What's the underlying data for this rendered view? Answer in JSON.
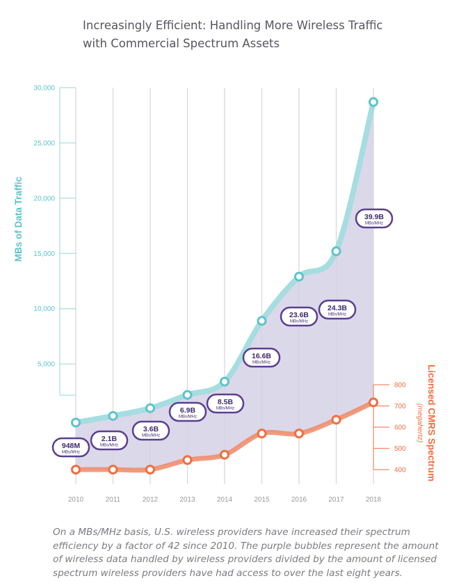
{
  "header": {
    "title_lines": [
      "Increasingly Efficient: Handling More Wireless Traffic",
      "with Commercial Spectrum Assets"
    ]
  },
  "caption": {
    "lines": [
      "On a MBs/MHz basis, U.S. wireless providers have increased their spectrum",
      "efficiency by a factor of 42 since 2010. The purple bubbles represent the amount",
      "of wireless data handled by wireless providers divided by the amount of licensed",
      "spectrum wireless providers have had access to over the last eight years."
    ]
  },
  "colors": {
    "traffic": "#a6dde0",
    "traffic_axis": "#5cc3cc",
    "spectrum": "#f08a66",
    "spectrum_axis": "#f26d3d",
    "fill": "#d5d1e6",
    "bubble": "#5b3f8f",
    "grid": "#d6d6d6",
    "year_label": "#9a9a9a"
  },
  "chart_data": {
    "type": "line",
    "x": [
      "2010",
      "2011",
      "2012",
      "2013",
      "2014",
      "2015",
      "2016",
      "2017",
      "2018"
    ],
    "series": [
      {
        "name": "MBs of Data Traffic",
        "axis": "left",
        "values": [
          -300,
          300,
          1000,
          2200,
          3400,
          8900,
          12900,
          15200,
          28700
        ]
      },
      {
        "name": "Licensed CMRS Spectrum",
        "axis": "right",
        "values": [
          400,
          400,
          400,
          445,
          470,
          570,
          570,
          635,
          717
        ]
      }
    ],
    "bubbles": [
      {
        "value": "948M",
        "unit": "MBs/MHz"
      },
      {
        "value": "2.1B",
        "unit": "MBs/MHz"
      },
      {
        "value": "3.6B",
        "unit": "MBs/MHz"
      },
      {
        "value": "6.9B",
        "unit": "MBs/MHz"
      },
      {
        "value": "8.5B",
        "unit": "MBs/MHz"
      },
      {
        "value": "16.6B",
        "unit": "MBs/MHz"
      },
      {
        "value": "23.6B",
        "unit": "MBs/MHz"
      },
      {
        "value": "24.3B",
        "unit": "MBs/MHz"
      },
      {
        "value": "39.9B",
        "unit": "MBs/MHz"
      }
    ],
    "left_axis": {
      "label": "MBs of Data Traffic",
      "ticks": [
        5000,
        10000,
        15000,
        20000,
        25000,
        30000
      ],
      "tick_labels": [
        "5,000",
        "10,000",
        "15,000",
        "20,000",
        "25,000",
        "30,000"
      ],
      "ylim": [
        -5500,
        30000
      ]
    },
    "right_axis": {
      "label": "Licensed CMRS Spectrum",
      "sublabel": "(megahertz)",
      "ticks": [
        400,
        500,
        600,
        700,
        800
      ],
      "tick_labels": [
        "400",
        "500",
        "600",
        "700",
        "800"
      ],
      "ylim": [
        400,
        800
      ]
    },
    "grid": "vertical"
  }
}
